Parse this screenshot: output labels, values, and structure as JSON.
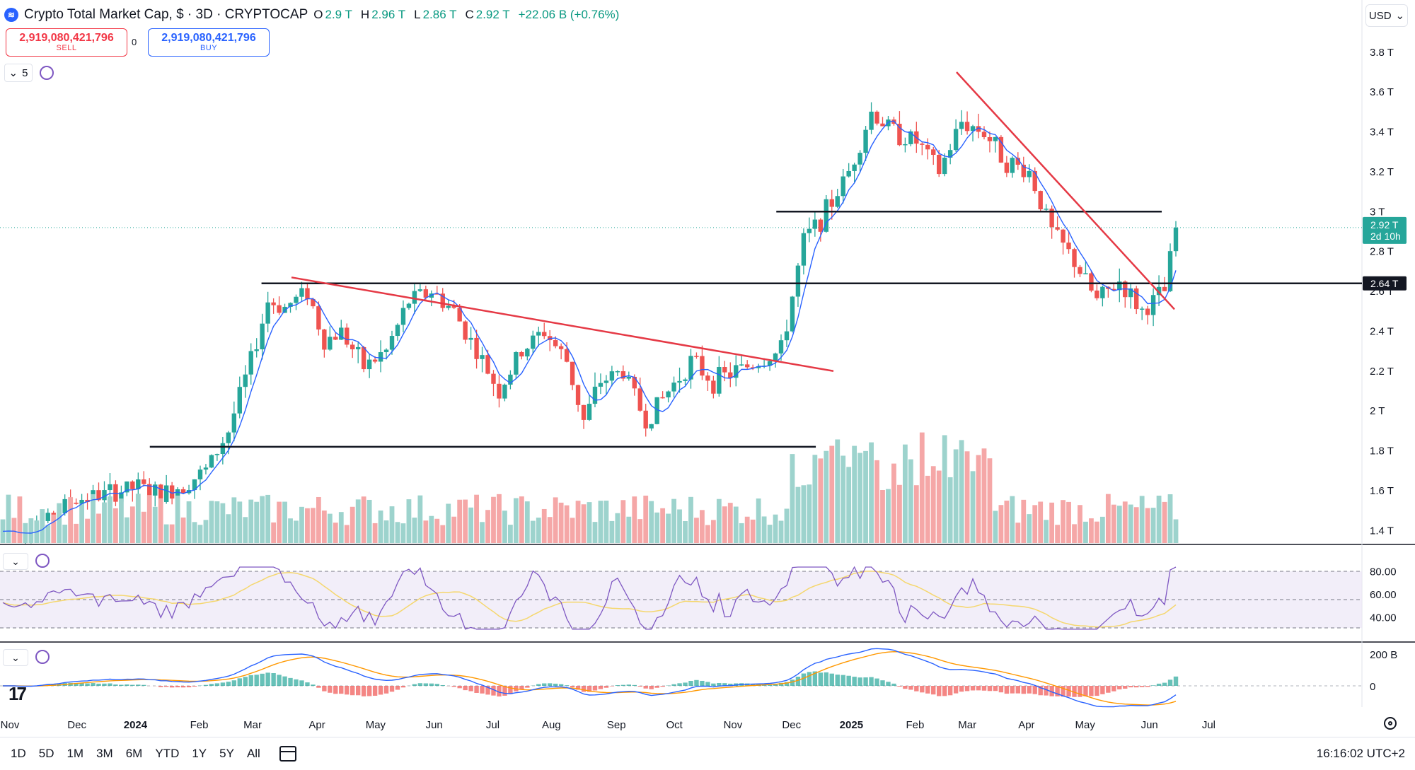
{
  "header": {
    "title": "Crypto Total Market Cap, $ · 3D · CRYPTOCAP",
    "ohlc": [
      {
        "k": "O",
        "v": "2.9 T"
      },
      {
        "k": "H",
        "v": "2.96 T"
      },
      {
        "k": "L",
        "v": "2.86 T"
      },
      {
        "k": "C",
        "v": "2.92 T"
      }
    ],
    "change": "+22.06 B (+0.76%)",
    "logo_icon": "coin-icon"
  },
  "trade": {
    "sell_price": "2,919,080,421,796",
    "sell_label": "SELL",
    "spread": "0",
    "buy_price": "2,919,080,421,796",
    "buy_label": "BUY"
  },
  "indicator_count": "5",
  "currency": "USD",
  "chart_data": {
    "type": "candlestick",
    "ylim": [
      1.33,
      3.92
    ],
    "y_ticks": [
      {
        "v": 3.8,
        "label": "3.8 T"
      },
      {
        "v": 3.6,
        "label": "3.6 T"
      },
      {
        "v": 3.4,
        "label": "3.4 T"
      },
      {
        "v": 3.2,
        "label": "3.2 T"
      },
      {
        "v": 3.0,
        "label": "3 T"
      },
      {
        "v": 2.8,
        "label": "2.8 T"
      },
      {
        "v": 2.6,
        "label": "2.6 T"
      },
      {
        "v": 2.4,
        "label": "2.4 T"
      },
      {
        "v": 2.2,
        "label": "2.2 T"
      },
      {
        "v": 2.0,
        "label": "2 T"
      },
      {
        "v": 1.8,
        "label": "1.8 T"
      },
      {
        "v": 1.6,
        "label": "1.6 T"
      },
      {
        "v": 1.4,
        "label": "1.4 T"
      }
    ],
    "x_ticks": [
      {
        "t": 0.0,
        "label": "Nov",
        "bold": false
      },
      {
        "t": 0.104,
        "label": "Dec",
        "bold": false
      },
      {
        "t": 0.195,
        "label": "2024",
        "bold": true
      },
      {
        "t": 0.294,
        "label": "Feb",
        "bold": false
      },
      {
        "t": 0.377,
        "label": "Mar",
        "bold": false
      },
      {
        "t": 0.477,
        "label": "Apr",
        "bold": false
      },
      {
        "t": 0.568,
        "label": "May",
        "bold": false
      },
      {
        "t": 0.659,
        "label": "Jun",
        "bold": false
      },
      {
        "t": 0.75,
        "label": "Jul",
        "bold": false
      },
      {
        "t": 0.841,
        "label": "Aug",
        "bold": false
      },
      {
        "t": 0.942,
        "label": "Sep",
        "bold": false
      }
    ],
    "x_ticks_note": "t is fraction of plot width",
    "x_ticks2": [
      {
        "t": 1.032,
        "label": "Oct",
        "bold": false
      },
      {
        "t": 1.123,
        "label": "Nov",
        "bold": false
      },
      {
        "t": 1.214,
        "label": "Dec",
        "bold": false
      },
      {
        "t": 1.307,
        "label": "2025",
        "bold": true
      },
      {
        "t": 1.406,
        "label": "Feb",
        "bold": false
      },
      {
        "t": 1.487,
        "label": "Mar",
        "bold": false
      },
      {
        "t": 1.579,
        "label": "Apr",
        "bold": false
      },
      {
        "t": 1.67,
        "label": "May",
        "bold": false
      },
      {
        "t": 1.77,
        "label": "Jun",
        "bold": false
      },
      {
        "t": 1.862,
        "label": "Jul",
        "bold": false
      }
    ],
    "price_anchors": [
      [
        0,
        1.39
      ],
      [
        8,
        1.45
      ],
      [
        12,
        1.55
      ],
      [
        18,
        1.58
      ],
      [
        24,
        1.62
      ],
      [
        28,
        1.58
      ],
      [
        32,
        1.63
      ],
      [
        36,
        1.7
      ],
      [
        40,
        1.9
      ],
      [
        44,
        2.25
      ],
      [
        47,
        2.55
      ],
      [
        50,
        2.52
      ],
      [
        54,
        2.6
      ],
      [
        57,
        2.35
      ],
      [
        60,
        2.4
      ],
      [
        64,
        2.22
      ],
      [
        68,
        2.3
      ],
      [
        72,
        2.55
      ],
      [
        76,
        2.6
      ],
      [
        80,
        2.5
      ],
      [
        84,
        2.3
      ],
      [
        88,
        2.1
      ],
      [
        92,
        2.3
      ],
      [
        96,
        2.4
      ],
      [
        100,
        2.25
      ],
      [
        103,
        1.95
      ],
      [
        106,
        2.15
      ],
      [
        110,
        2.2
      ],
      [
        114,
        1.95
      ],
      [
        118,
        2.1
      ],
      [
        122,
        2.25
      ],
      [
        126,
        2.15
      ],
      [
        130,
        2.2
      ],
      [
        134,
        2.25
      ],
      [
        138,
        2.3
      ],
      [
        142,
        2.85
      ],
      [
        146,
        3.0
      ],
      [
        150,
        3.2
      ],
      [
        154,
        3.5
      ],
      [
        158,
        3.4
      ],
      [
        162,
        3.35
      ],
      [
        166,
        3.2
      ],
      [
        170,
        3.45
      ],
      [
        174,
        3.4
      ],
      [
        178,
        3.25
      ],
      [
        182,
        3.2
      ],
      [
        186,
        2.9
      ],
      [
        190,
        2.75
      ],
      [
        194,
        2.55
      ],
      [
        198,
        2.65
      ],
      [
        202,
        2.5
      ],
      [
        206,
        2.6
      ],
      [
        208,
        2.92
      ]
    ],
    "current_price_label": "2.92 T",
    "current_countdown": "2d 10h",
    "hline_label": "2.64 T",
    "levels": [
      {
        "name": "resistance",
        "y": 3.0,
        "t0": 0.57,
        "t1": 0.853
      },
      {
        "name": "support-mid",
        "y": 2.64,
        "t0": 0.192,
        "t1": 1.0
      },
      {
        "name": "support-low",
        "y": 1.82,
        "t0": 0.11,
        "t1": 0.599
      }
    ],
    "trendlines": [
      {
        "name": "trendline-2024",
        "x0": 0.206,
        "y0": 2.67,
        "x1": 0.589,
        "y1": 2.2
      },
      {
        "name": "trendline-2025",
        "x0": 0.676,
        "y0": 3.7,
        "x1": 0.83,
        "y1": 2.51
      }
    ],
    "rsi": {
      "levels": [
        70,
        50,
        30
      ],
      "labels": [
        "80.00",
        "60.00",
        "40.00"
      ]
    },
    "macd": {
      "labels": [
        "200 B",
        "0"
      ]
    },
    "colors": {
      "up": "#26a69a",
      "down": "#ef5350",
      "up_vol": "#9dd3cd",
      "down_vol": "#f5a7a7",
      "ma": "#2962ff",
      "trend": "#e53945",
      "level": "#131722",
      "rsi": "#7e57c2",
      "rsi_ma": "#f5d76e",
      "macd": "#2962ff",
      "signal": "#ff9800"
    }
  },
  "ranges": [
    "1D",
    "5D",
    "1M",
    "3M",
    "6M",
    "YTD",
    "1Y",
    "5Y",
    "All"
  ],
  "clock": "16:16:02 UTC+2"
}
